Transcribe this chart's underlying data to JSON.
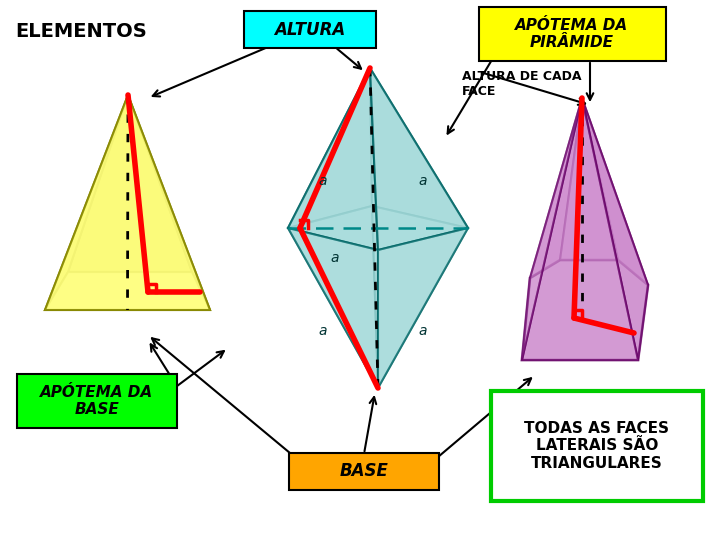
{
  "bg_color": "#ffffff",
  "title_text": "ELEMENTOS",
  "label_altura": "ALTURA",
  "label_apotema_piramide": "APÓTEMA DA\nPIRÂMIDE",
  "label_altura_face": "ALTURA DE CADA\nFACE",
  "label_apotema_base": "APÓTEMA DA\nBASE",
  "label_base": "BASE",
  "label_todas": "TODAS AS FACES\nLATERAIS SÃO\nTRIANGULARES",
  "box_altura_color": "#00ffff",
  "box_apotema_piramide_color": "#ffff00",
  "box_apotema_base_color": "#00ff00",
  "box_base_color": "#ffa500",
  "box_todas_border_color": "#00cc00",
  "red_line_color": "#ff0000",
  "arrow_color": "#000000",
  "p1_color_face": "#ffff88",
  "p1_color_edge": "#888800",
  "p2_color_face": "#aadddd",
  "p2_color_edge": "#006666",
  "p3_color_face": "#cc88cc",
  "p3_color_edge": "#660066"
}
